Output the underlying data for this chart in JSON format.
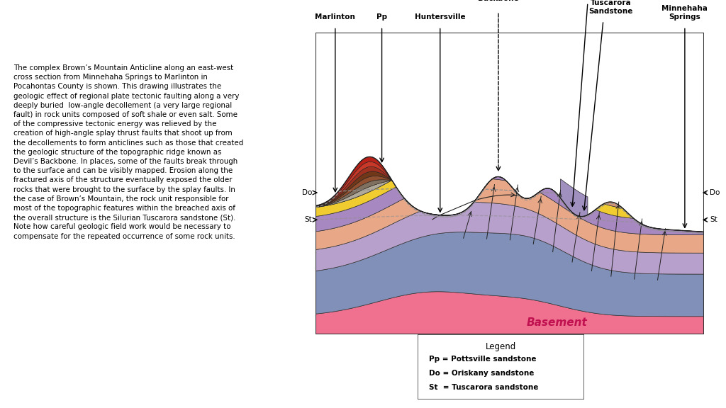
{
  "bg_color": "#ffffff",
  "body_text": "The complex Brown’s Mountain Anticline along an east-west\ncross section from Minnehaha Springs to Marlinton in\nPocahontas County is shown. This drawing illustrates the\ngeologic effect of regional plate tectonic faulting along a very\ndeeply buried  low-angle decollement (a very large regional\nfault) in rock units composed of soft shale or even salt. Some\nof the compressive tectonic energy was relieved by the\ncreation of high-angle splay thrust faults that shoot up from\nthe decollements to form anticlines such as those that created\nthe geologic structure of the topographic ridge known as\nDevil’s Backbone. In places, some of the faults break through\nto the surface and can be visibly mapped. Erosion along the\nfractured axis of the structure eventually exposed the older\nrocks that were brought to the surface by the splay faults. In\nthe case of Brown’s Mountain, the rock unit responsible for\nmost of the topographic features within the breached axis of\nthe overall structure is the Silurian Tuscarora sandstone (St).\nNote how careful geologic field work would be necessary to\ncompensate for the repeated occurrence of some rock units.",
  "legend_title": "Legend",
  "legend_lines": [
    "Pp = Pottsville sandstone",
    "Do = Oriskany sandstone",
    "St  = Tuscarora sandstone"
  ],
  "colors": {
    "basement_pink": "#F07090",
    "blue_gray": "#8090B8",
    "light_purple1": "#B8A0CC",
    "light_purple2": "#C8B0D8",
    "salmon1": "#E8A888",
    "salmon2": "#D89878",
    "medium_purple": "#A888C0",
    "yellow_band": "#F0CC30",
    "dark_red": "#B82018",
    "red_med": "#C83828",
    "red_brown": "#A03020",
    "brown_dark": "#703818",
    "brown_med": "#905030",
    "gray_brown": "#807060",
    "gray_light": "#B0A898",
    "purple_gray": "#9080A0",
    "outline": "#222222",
    "dashed_line": "#909090",
    "border_yellow": "#D8D020",
    "text_dark": "#000000",
    "basement_label": "#C01050"
  }
}
